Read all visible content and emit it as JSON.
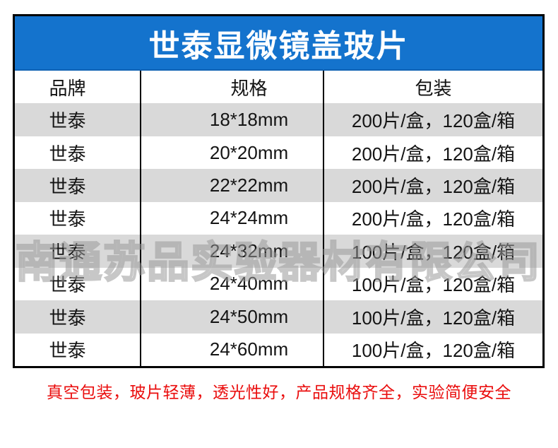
{
  "banner": {
    "title": "世泰显微镜盖玻片"
  },
  "table": {
    "headers": [
      "品牌",
      "规格",
      "包装"
    ],
    "rows": [
      {
        "brand": "世泰",
        "spec": "18*18mm",
        "packing": "200片/盒，120盒/箱"
      },
      {
        "brand": "世泰",
        "spec": "20*20mm",
        "packing": "200片/盒，120盒/箱"
      },
      {
        "brand": "世泰",
        "spec": "22*22mm",
        "packing": "200片/盒，120盒/箱"
      },
      {
        "brand": "世泰",
        "spec": "24*24mm",
        "packing": "200片/盒，120盒/箱"
      },
      {
        "brand": "世泰",
        "spec": "24*32mm",
        "packing": "100片/盒，120盒/箱"
      },
      {
        "brand": "世泰",
        "spec": "24*40mm",
        "packing": "100片/盒，120盒/箱"
      },
      {
        "brand": "世泰",
        "spec": "24*50mm",
        "packing": "100片/盒，120盒/箱"
      },
      {
        "brand": "世泰",
        "spec": "24*60mm",
        "packing": "100片/盒，120盒/箱"
      }
    ]
  },
  "watermark": {
    "text": "南通苏品实验器材有限公司"
  },
  "footer": {
    "note": "真空包装，玻片轻薄，透光性好，产品规格齐全，实验简便安全"
  },
  "colors": {
    "banner_blue": "#1473cd",
    "alt_row_gray": "#d9d9d9",
    "border_black": "#000000",
    "footer_red": "#ea0d0d",
    "watermark_gray": "#9a9a9a"
  }
}
